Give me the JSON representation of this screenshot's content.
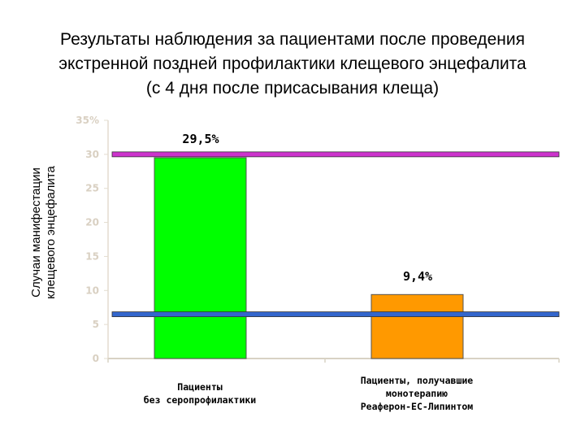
{
  "title_lines": [
    "Результаты наблюдения за пациентами после проведения",
    "экстренной поздней профилактики клещевого энцефалита",
    "(с 4 дня после присасывания клеща)"
  ],
  "ylabel_lines": [
    "Случаи манифестации",
    "клещевого энцефалита"
  ],
  "colors": {
    "bar_1": "#00ff00",
    "bar_2": "#ff9900",
    "line_high": "#cc33cc",
    "line_low": "#3366cc",
    "tick_label": "#d9d0c2"
  },
  "chart_data": {
    "type": "bar",
    "categories": [
      [
        "Пациенты",
        "без серопрофилактики"
      ],
      [
        "Пациенты, получавшие",
        "монотерапию",
        "Реаферон-ЕС-Липинтом"
      ]
    ],
    "values": [
      29.5,
      9.4
    ],
    "data_labels": [
      "29,5%",
      "9,4%"
    ],
    "yticks": [
      "0",
      "5",
      "10",
      "15",
      "20",
      "25",
      "30",
      "35%"
    ],
    "ylim": [
      0,
      35
    ],
    "reference_lines": [
      30,
      6.5
    ],
    "grid": false,
    "legend": "none"
  }
}
